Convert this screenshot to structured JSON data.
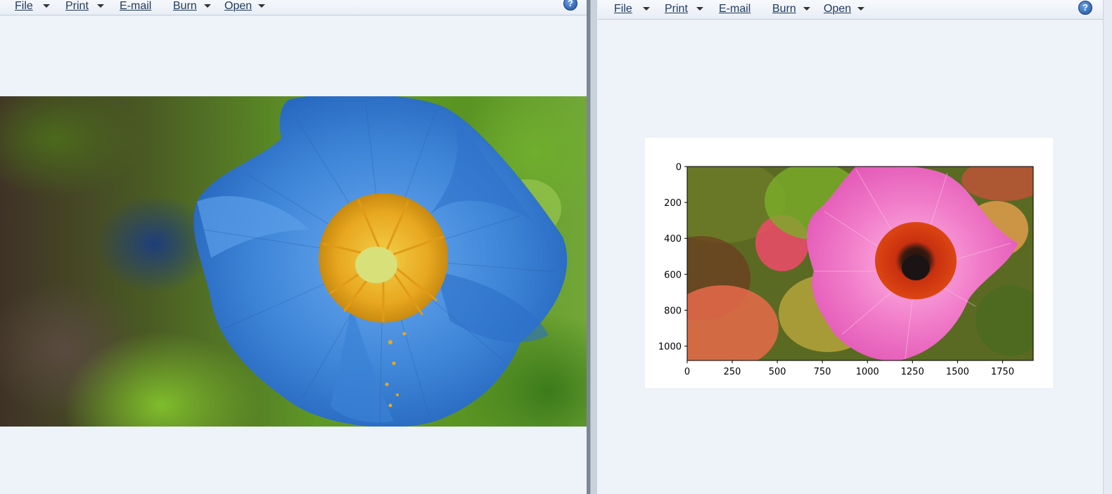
{
  "left_window": {
    "toolbar": {
      "file": "File",
      "print": "Print",
      "email": "E-mail",
      "burn": "Burn",
      "open": "Open",
      "help": "?"
    }
  },
  "right_window": {
    "toolbar": {
      "file": "File",
      "print": "Print",
      "email": "E-mail",
      "burn": "Burn",
      "open": "Open",
      "help": "?"
    }
  },
  "chart_data": {
    "type": "image",
    "title": "",
    "xlabel": "",
    "ylabel": "",
    "xlim": [
      0,
      1920
    ],
    "ylim": [
      1080,
      0
    ],
    "x_ticks": [
      0,
      250,
      500,
      750,
      1000,
      1250,
      1500,
      1750
    ],
    "y_ticks": [
      0,
      200,
      400,
      600,
      800,
      1000
    ]
  },
  "colors": {
    "window_bg": "#eef2f9",
    "poppy_blue": "#3f86d8",
    "stamen_yellow": "#e8a820",
    "pink_petal": "#f07ac8",
    "red_center": "#d8360e"
  }
}
